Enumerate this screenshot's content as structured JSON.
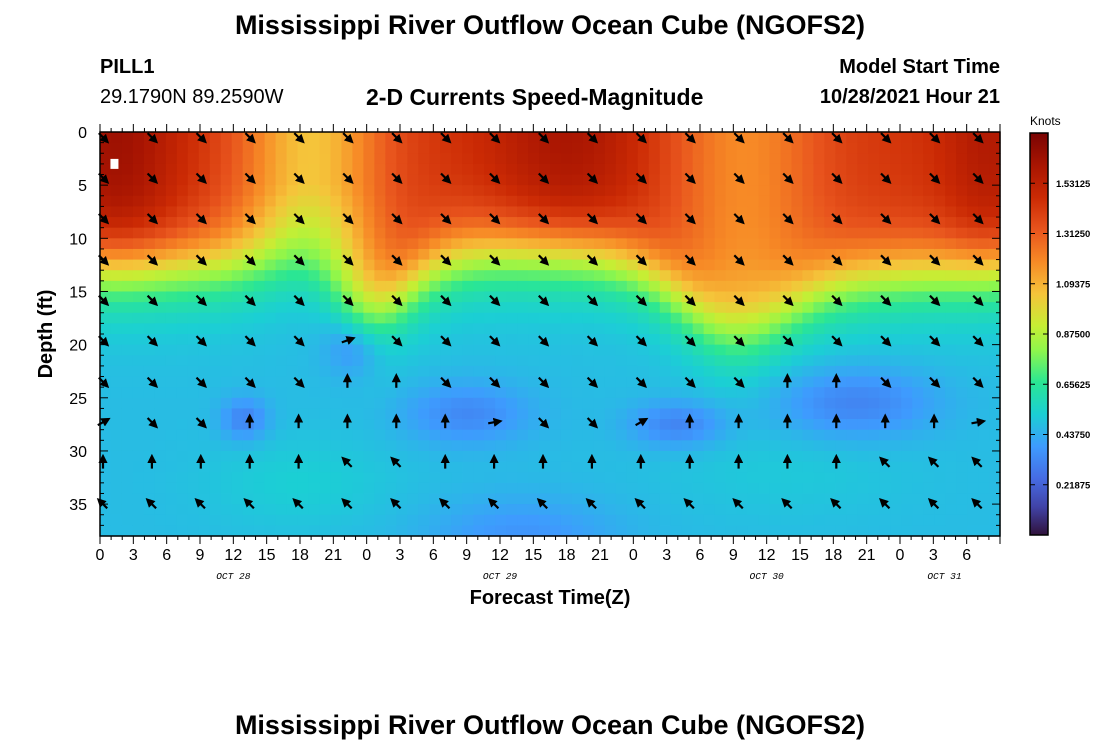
{
  "header": {
    "title": "Mississippi River Outflow Ocean Cube (NGOFS2)",
    "station": "PILL1",
    "coords": "29.1790N  89.2590W",
    "subtitle": "2-D Currents Speed-Magnitude",
    "model_start_label": "Model Start Time",
    "model_start_value": "10/28/2021 Hour 21"
  },
  "footer": {
    "title": "Mississippi River Outflow Ocean Cube (NGOFS2)"
  },
  "colors": {
    "arrow": "#000000",
    "marker": "#ffffff"
  },
  "chart_data": {
    "type": "heatmap",
    "title": "2-D Currents Speed-Magnitude",
    "xlabel": "Forecast Time(Z)",
    "ylabel": "Depth (ft)",
    "x_range_hours": [
      0,
      81
    ],
    "y_range_ft": [
      0,
      38
    ],
    "x_ticks": [
      {
        "h": 0,
        "label": "0"
      },
      {
        "h": 3,
        "label": "3"
      },
      {
        "h": 6,
        "label": "6"
      },
      {
        "h": 9,
        "label": "9"
      },
      {
        "h": 12,
        "label": "12"
      },
      {
        "h": 15,
        "label": "15"
      },
      {
        "h": 18,
        "label": "18"
      },
      {
        "h": 21,
        "label": "21"
      },
      {
        "h": 24,
        "label": "0"
      },
      {
        "h": 27,
        "label": "3"
      },
      {
        "h": 30,
        "label": "6"
      },
      {
        "h": 33,
        "label": "9"
      },
      {
        "h": 36,
        "label": "12"
      },
      {
        "h": 39,
        "label": "15"
      },
      {
        "h": 42,
        "label": "18"
      },
      {
        "h": 45,
        "label": "21"
      },
      {
        "h": 48,
        "label": "0"
      },
      {
        "h": 51,
        "label": "3"
      },
      {
        "h": 54,
        "label": "6"
      },
      {
        "h": 57,
        "label": "9"
      },
      {
        "h": 60,
        "label": "12"
      },
      {
        "h": 63,
        "label": "15"
      },
      {
        "h": 66,
        "label": "18"
      },
      {
        "h": 69,
        "label": "21"
      },
      {
        "h": 72,
        "label": "0"
      },
      {
        "h": 75,
        "label": "3"
      },
      {
        "h": 78,
        "label": "6"
      }
    ],
    "date_labels": [
      {
        "h": 12,
        "label": "OCT 28"
      },
      {
        "h": 36,
        "label": "OCT 29"
      },
      {
        "h": 60,
        "label": "OCT 30"
      },
      {
        "h": 76,
        "label": "OCT 31"
      }
    ],
    "y_ticks": [
      0,
      5,
      10,
      15,
      20,
      25,
      30,
      35
    ],
    "colorbar": {
      "title": "Knots",
      "range": [
        0,
        1.75
      ],
      "ticks": [
        "1.53125",
        "1.31250",
        "1.09375",
        "0.87500",
        "0.65625",
        "0.43750",
        "0.21875"
      ]
    },
    "arrow_columns_hours": [
      0,
      4.4,
      8.8,
      13.2,
      17.6,
      22,
      26.4,
      30.8,
      35.2,
      39.6,
      44,
      48.4,
      52.8,
      57.2,
      61.6,
      66,
      70.4,
      74.8,
      78.7
    ],
    "arrow_rows_ft": [
      0.5,
      4.3,
      8.1,
      12,
      15.8,
      19.6,
      23.5,
      27.3,
      31.1,
      35
    ],
    "arrow_directions_deg": [
      [
        135,
        135,
        135,
        135,
        135,
        135,
        135,
        135,
        135,
        135,
        135,
        135,
        135,
        135,
        135,
        135,
        135,
        135,
        135
      ],
      [
        135,
        135,
        135,
        135,
        135,
        135,
        135,
        135,
        135,
        135,
        135,
        135,
        135,
        135,
        135,
        135,
        135,
        135,
        135
      ],
      [
        135,
        135,
        135,
        135,
        135,
        135,
        135,
        135,
        135,
        135,
        135,
        135,
        135,
        135,
        135,
        135,
        135,
        135,
        135
      ],
      [
        135,
        135,
        135,
        135,
        135,
        135,
        135,
        135,
        135,
        135,
        135,
        135,
        135,
        135,
        135,
        135,
        135,
        135,
        135
      ],
      [
        135,
        135,
        135,
        135,
        135,
        135,
        135,
        135,
        135,
        135,
        135,
        135,
        135,
        135,
        135,
        135,
        135,
        135,
        135
      ],
      [
        135,
        135,
        135,
        135,
        135,
        70,
        135,
        135,
        135,
        135,
        135,
        135,
        135,
        135,
        135,
        135,
        135,
        135,
        135
      ],
      [
        135,
        135,
        135,
        135,
        135,
        0,
        0,
        135,
        135,
        135,
        135,
        135,
        135,
        135,
        0,
        0,
        135,
        135,
        135
      ],
      [
        60,
        135,
        135,
        0,
        0,
        0,
        0,
        0,
        80,
        135,
        135,
        60,
        0,
        0,
        0,
        0,
        0,
        0,
        80
      ],
      [
        0,
        0,
        0,
        0,
        0,
        315,
        315,
        0,
        0,
        0,
        0,
        0,
        0,
        0,
        0,
        0,
        315,
        315,
        315
      ],
      [
        315,
        315,
        315,
        315,
        315,
        315,
        315,
        315,
        315,
        315,
        315,
        315,
        315,
        315,
        315,
        315,
        315,
        315,
        315
      ]
    ],
    "surface_marker": {
      "hour": 1.3,
      "depth_ft": 3
    }
  }
}
